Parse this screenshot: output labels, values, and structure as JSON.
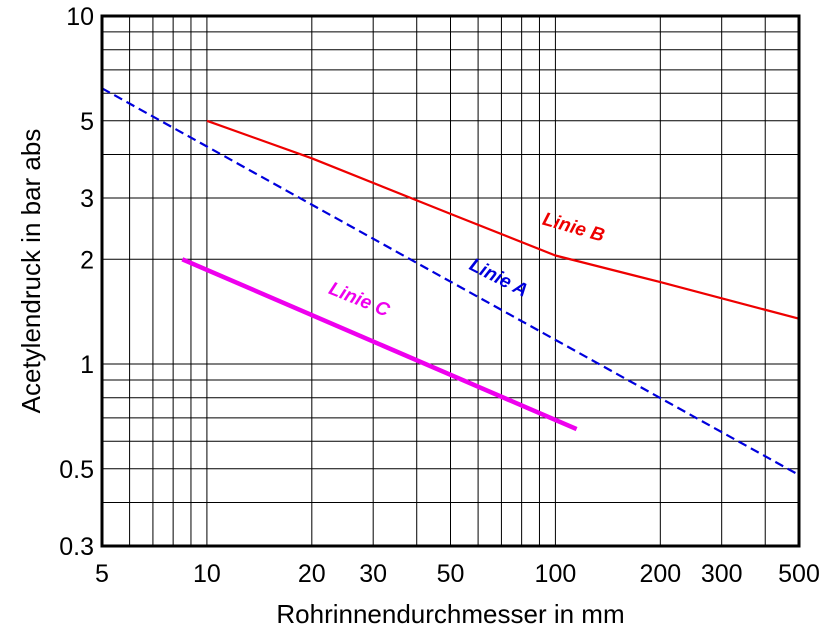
{
  "chart_data": {
    "type": "line",
    "xlabel": "Rohrinnendurchmesser in mm",
    "ylabel": "Acetylendruck in bar abs",
    "x_scale": "log",
    "y_scale": "log",
    "xlim": [
      5,
      500
    ],
    "ylim": [
      0.3,
      10
    ],
    "grid": true,
    "x_ticks": [
      {
        "value": 5,
        "label": "5"
      },
      {
        "value": 10,
        "label": "10"
      },
      {
        "value": 20,
        "label": "20"
      },
      {
        "value": 30,
        "label": "30"
      },
      {
        "value": 50,
        "label": "50"
      },
      {
        "value": 100,
        "label": "100"
      },
      {
        "value": 200,
        "label": "200"
      },
      {
        "value": 300,
        "label": "300"
      },
      {
        "value": 500,
        "label": "500"
      }
    ],
    "y_ticks": [
      {
        "value": 0.3,
        "label": "0.3"
      },
      {
        "value": 0.5,
        "label": "0.5"
      },
      {
        "value": 1,
        "label": "1"
      },
      {
        "value": 2,
        "label": "2"
      },
      {
        "value": 3,
        "label": "3"
      },
      {
        "value": 5,
        "label": "5"
      },
      {
        "value": 10,
        "label": "10"
      }
    ],
    "series": [
      {
        "name": "Linie A",
        "color": "#0000dd",
        "style": "dashed",
        "x": [
          5,
          500
        ],
        "y": [
          6.2,
          0.48
        ]
      },
      {
        "name": "Linie B",
        "color": "#ee0000",
        "style": "solid",
        "x": [
          10,
          20,
          50,
          100,
          200,
          500
        ],
        "y": [
          5.0,
          3.9,
          2.7,
          2.05,
          1.72,
          1.35
        ]
      },
      {
        "name": "Linie C",
        "color": "#ee00ee",
        "style": "solid-thick",
        "x": [
          8.5,
          115
        ],
        "y": [
          2.0,
          0.65
        ]
      }
    ]
  }
}
